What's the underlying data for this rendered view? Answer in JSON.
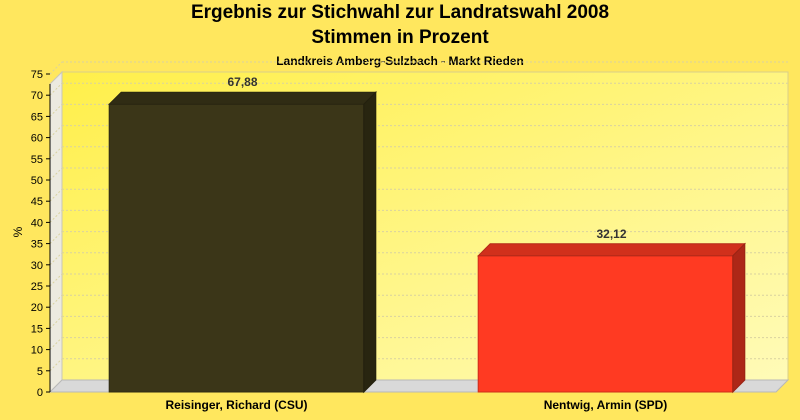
{
  "chart_data": {
    "type": "bar",
    "title": "Ergebnis zur Stichwahl zur Landratswahl 2008",
    "subtitle": "Stimmen in Prozent",
    "subsubtitle": "Landkreis Amberg-Sulzbach - Markt Rieden",
    "ylabel": "%",
    "xlabel": "",
    "ylim": [
      0,
      75
    ],
    "yticks": [
      0,
      5,
      10,
      15,
      20,
      25,
      30,
      35,
      40,
      45,
      50,
      55,
      60,
      65,
      70,
      75
    ],
    "grid": true,
    "categories": [
      "Reisinger, Richard (CSU)",
      "Nentwig, Armin (SPD)"
    ],
    "values": [
      67.88,
      32.12
    ],
    "value_labels": [
      "67,88",
      "32,12"
    ],
    "colors": [
      "#3b3618",
      "#ff3a22"
    ]
  }
}
